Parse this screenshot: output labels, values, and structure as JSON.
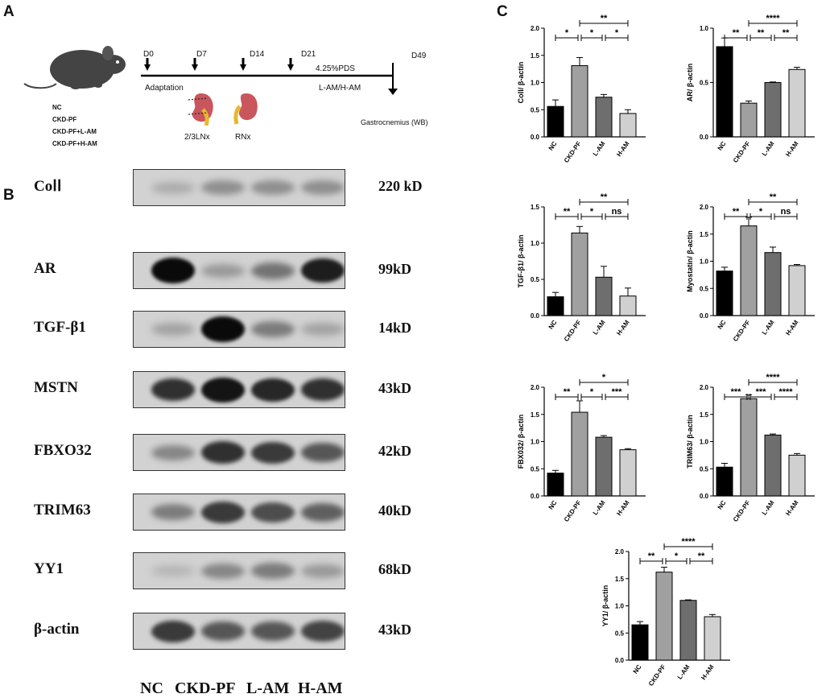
{
  "panel_a": {
    "letter": "A",
    "groups": [
      "NC",
      "CKD-PF",
      "CKD-PF+L-AM",
      "CKD-PF+H-AM"
    ],
    "timeline": {
      "days": [
        "D0",
        "D7",
        "D14",
        "D21",
        "D49"
      ],
      "adaptation": "Adaptation",
      "pds": "4.25%PDS",
      "treatment": "L-AM/H-AM",
      "endpoint": "Gastrocnemius (WB)"
    },
    "surgeries": [
      "2/3LNx",
      "RNx"
    ]
  },
  "panel_b": {
    "letter": "B",
    "blots": [
      {
        "protein": "CoⅠⅠ",
        "size": "220 kD"
      },
      {
        "protein": "AR",
        "size": "99kD"
      },
      {
        "protein": "TGF-β1",
        "size": "14kD"
      },
      {
        "protein": "MSTN",
        "size": "43kD"
      },
      {
        "protein": "FBXO32",
        "size": "42kD"
      },
      {
        "protein": "TRIM63",
        "size": "40kD"
      },
      {
        "protein": "YY1",
        "size": "68kD"
      },
      {
        "protein": "β-actin",
        "size": "43kD"
      }
    ],
    "lanes": [
      "NC",
      "CKD-PF",
      "L-AM",
      "H-AM"
    ],
    "band_intensity": [
      [
        0.15,
        0.3,
        0.3,
        0.3
      ],
      [
        1.0,
        0.25,
        0.45,
        0.9
      ],
      [
        0.2,
        1.0,
        0.4,
        0.2
      ],
      [
        0.8,
        0.95,
        0.85,
        0.8
      ],
      [
        0.35,
        0.8,
        0.75,
        0.6
      ],
      [
        0.4,
        0.75,
        0.65,
        0.55
      ],
      [
        0.1,
        0.35,
        0.4,
        0.25
      ],
      [
        0.75,
        0.6,
        0.6,
        0.7
      ]
    ]
  },
  "panel_c": {
    "letter": "C"
  },
  "chart_data": [
    {
      "type": "bar",
      "categories": [
        "NC",
        "CKD-PF",
        "L-AM",
        "H-AM"
      ],
      "values": [
        0.56,
        1.31,
        0.73,
        0.43
      ],
      "errors": [
        0.12,
        0.15,
        0.05,
        0.07
      ],
      "ylabel": "CoⅠⅠ/ β-actin",
      "ylim": [
        0,
        2.0
      ],
      "yticks": [
        0.0,
        0.5,
        1.0,
        1.5,
        2.0
      ],
      "colors": [
        "#000000",
        "#a0a0a0",
        "#6e6e6e",
        "#d0d0d0"
      ],
      "significance": [
        {
          "from": 0,
          "to": 1,
          "label": "*",
          "level": 0
        },
        {
          "from": 1,
          "to": 2,
          "label": "*",
          "level": 0
        },
        {
          "from": 2,
          "to": 3,
          "label": "*",
          "level": 0
        },
        {
          "from": 1,
          "to": 3,
          "label": "**",
          "level": 1
        }
      ]
    },
    {
      "type": "bar",
      "categories": [
        "NC",
        "CKD-PF",
        "L-AM",
        "H-AM"
      ],
      "values": [
        0.83,
        0.31,
        0.5,
        0.62
      ],
      "errors": [
        0.08,
        0.02,
        0.005,
        0.02
      ],
      "ylabel": "AR/ β-actin",
      "ylim": [
        0,
        1.0
      ],
      "yticks": [
        0.0,
        0.5,
        1.0
      ],
      "colors": [
        "#000000",
        "#a0a0a0",
        "#6e6e6e",
        "#d0d0d0"
      ],
      "significance": [
        {
          "from": 0,
          "to": 1,
          "label": "**",
          "level": 0
        },
        {
          "from": 1,
          "to": 2,
          "label": "**",
          "level": 0
        },
        {
          "from": 2,
          "to": 3,
          "label": "**",
          "level": 0
        },
        {
          "from": 1,
          "to": 3,
          "label": "****",
          "level": 1
        }
      ]
    },
    {
      "type": "bar",
      "categories": [
        "NC",
        "CKD-PF",
        "L-AM",
        "H-AM"
      ],
      "values": [
        0.26,
        1.14,
        0.53,
        0.27
      ],
      "errors": [
        0.06,
        0.09,
        0.15,
        0.11
      ],
      "ylabel": "TGF-β1/ β-actin",
      "ylim": [
        0,
        1.5
      ],
      "yticks": [
        0.0,
        0.5,
        1.0,
        1.5
      ],
      "colors": [
        "#000000",
        "#a0a0a0",
        "#6e6e6e",
        "#d0d0d0"
      ],
      "significance": [
        {
          "from": 0,
          "to": 1,
          "label": "**",
          "level": 0
        },
        {
          "from": 1,
          "to": 2,
          "label": "*",
          "level": 0
        },
        {
          "from": 2,
          "to": 3,
          "label": "ns",
          "level": 0
        },
        {
          "from": 1,
          "to": 3,
          "label": "**",
          "level": 1
        }
      ]
    },
    {
      "type": "bar",
      "categories": [
        "NC",
        "CKD-PF",
        "L-AM",
        "H-AM"
      ],
      "values": [
        0.82,
        1.65,
        1.16,
        0.92
      ],
      "errors": [
        0.07,
        0.16,
        0.1,
        0.02
      ],
      "ylabel": "Myostatin/ β-actin",
      "ylim": [
        0,
        2.0
      ],
      "yticks": [
        0.0,
        0.5,
        1.0,
        1.5,
        2.0
      ],
      "colors": [
        "#000000",
        "#a0a0a0",
        "#6e6e6e",
        "#d0d0d0"
      ],
      "significance": [
        {
          "from": 0,
          "to": 1,
          "label": "**",
          "level": 0
        },
        {
          "from": 1,
          "to": 2,
          "label": "*",
          "level": 0
        },
        {
          "from": 2,
          "to": 3,
          "label": "ns",
          "level": 0
        },
        {
          "from": 1,
          "to": 3,
          "label": "**",
          "level": 1
        }
      ]
    },
    {
      "type": "bar",
      "categories": [
        "NC",
        "CKD-PF",
        "L-AM",
        "H-AM"
      ],
      "values": [
        0.42,
        1.54,
        1.08,
        0.85
      ],
      "errors": [
        0.05,
        0.21,
        0.03,
        0.02
      ],
      "ylabel": "FBX032/ β-actin",
      "ylim": [
        0,
        2.0
      ],
      "yticks": [
        0.0,
        0.5,
        1.0,
        1.5,
        2.0
      ],
      "colors": [
        "#000000",
        "#a0a0a0",
        "#6e6e6e",
        "#d0d0d0"
      ],
      "significance": [
        {
          "from": 0,
          "to": 1,
          "label": "**",
          "level": 0
        },
        {
          "from": 1,
          "to": 2,
          "label": "*",
          "level": 0
        },
        {
          "from": 2,
          "to": 3,
          "label": "***",
          "level": 0
        },
        {
          "from": 1,
          "to": 3,
          "label": "*",
          "level": 1
        }
      ]
    },
    {
      "type": "bar",
      "categories": [
        "NC",
        "CKD-PF",
        "L-AM",
        "H-AM"
      ],
      "values": [
        0.53,
        1.79,
        1.12,
        0.75
      ],
      "errors": [
        0.07,
        0.07,
        0.02,
        0.03
      ],
      "ylabel": "TRIM63/ β-actin",
      "ylim": [
        0,
        2.0
      ],
      "yticks": [
        0.0,
        0.5,
        1.0,
        1.5,
        2.0
      ],
      "colors": [
        "#000000",
        "#a0a0a0",
        "#6e6e6e",
        "#d0d0d0"
      ],
      "significance": [
        {
          "from": 0,
          "to": 1,
          "label": "***",
          "level": 0
        },
        {
          "from": 1,
          "to": 2,
          "label": "***",
          "level": 0
        },
        {
          "from": 2,
          "to": 3,
          "label": "****",
          "level": 0
        },
        {
          "from": 1,
          "to": 3,
          "label": "****",
          "level": 1
        }
      ]
    },
    {
      "type": "bar",
      "categories": [
        "NC",
        "CKD-PF",
        "L-AM",
        "H-AM"
      ],
      "values": [
        0.65,
        1.62,
        1.1,
        0.8
      ],
      "errors": [
        0.06,
        0.09,
        0.01,
        0.04
      ],
      "ylabel": "YY1/ β-actin",
      "ylim": [
        0,
        2.0
      ],
      "yticks": [
        0.0,
        0.5,
        1.0,
        1.5,
        2.0
      ],
      "colors": [
        "#000000",
        "#a0a0a0",
        "#6e6e6e",
        "#d0d0d0"
      ],
      "significance": [
        {
          "from": 0,
          "to": 1,
          "label": "**",
          "level": 0
        },
        {
          "from": 1,
          "to": 2,
          "label": "*",
          "level": 0
        },
        {
          "from": 2,
          "to": 3,
          "label": "**",
          "level": 0
        },
        {
          "from": 1,
          "to": 3,
          "label": "****",
          "level": 1
        }
      ]
    }
  ]
}
